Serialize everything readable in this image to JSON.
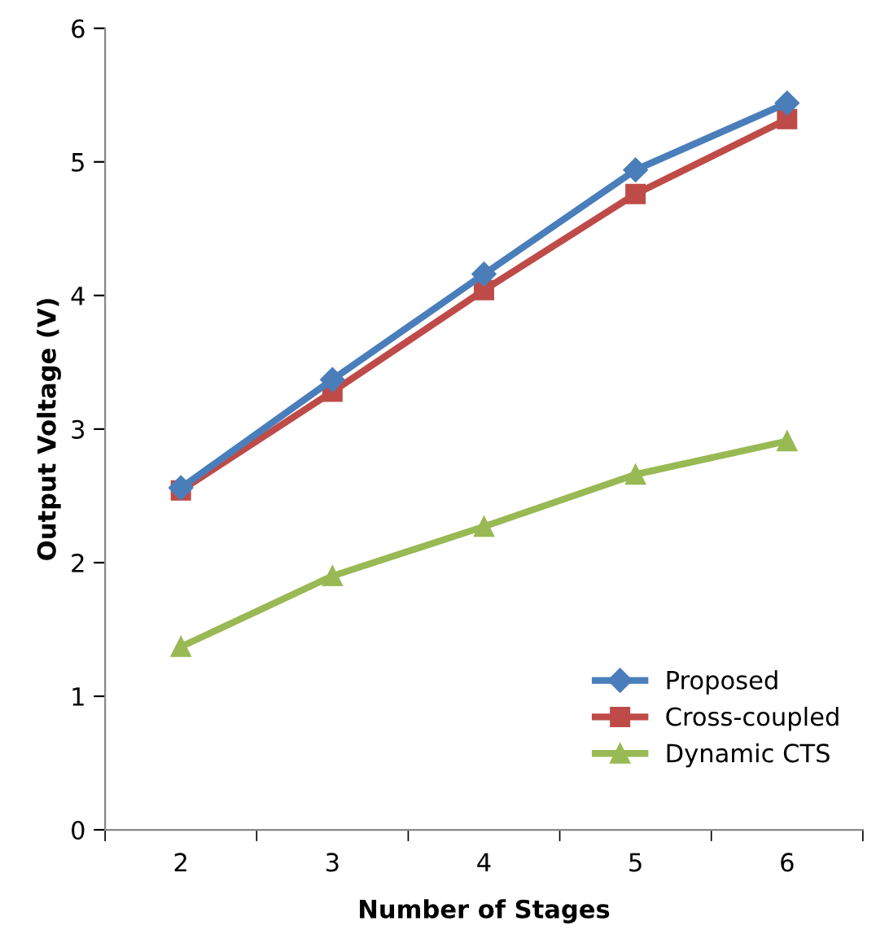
{
  "chart_data": {
    "type": "line",
    "xlabel": "Number of Stages",
    "ylabel": "Output Voltage (V)",
    "categories": [
      "2",
      "3",
      "4",
      "5",
      "6"
    ],
    "series": [
      {
        "name": "Proposed",
        "color": "#4a7ebb",
        "marker": "diamond",
        "values": [
          2.56,
          3.37,
          4.16,
          4.94,
          5.44
        ]
      },
      {
        "name": "Cross-coupled",
        "color": "#be4b48",
        "marker": "square",
        "values": [
          2.54,
          3.28,
          4.04,
          4.76,
          5.32
        ]
      },
      {
        "name": "Dynamic CTS",
        "color": "#98b954",
        "marker": "triangle",
        "values": [
          1.37,
          1.9,
          2.27,
          2.66,
          2.91
        ]
      }
    ],
    "ylim": [
      0,
      6
    ],
    "yticks": [
      0,
      1,
      2,
      3,
      4,
      5,
      6
    ],
    "grid": false,
    "legend": "bottom right",
    "line_style": "solid"
  }
}
